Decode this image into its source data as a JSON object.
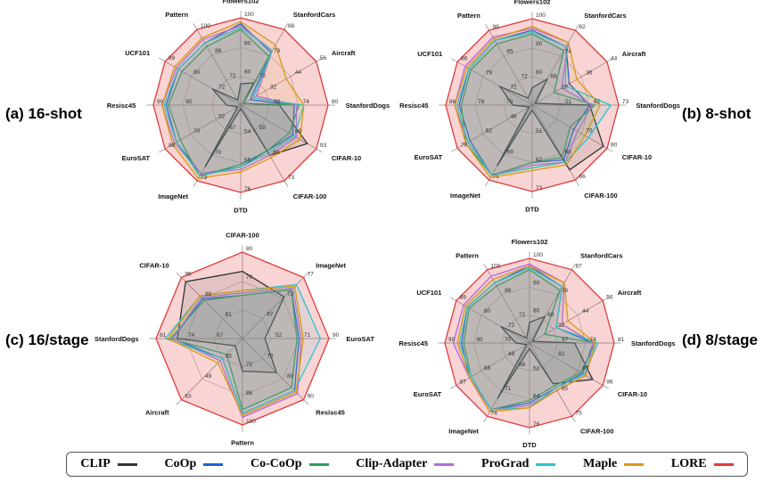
{
  "methods": [
    {
      "name": "CLIP",
      "color": "#333333"
    },
    {
      "name": "CoOp",
      "color": "#1f5fd6"
    },
    {
      "name": "Co-CoOp",
      "color": "#2e9e5b"
    },
    {
      "name": "Clip-Adapter",
      "color": "#b06be0"
    },
    {
      "name": "ProGrad",
      "color": "#2bc4cf"
    },
    {
      "name": "Maple",
      "color": "#d99a14"
    },
    {
      "name": "LORE",
      "color": "#e03c3c"
    }
  ],
  "chart_data": [
    {
      "type": "radar",
      "panel_label": "(a) 16-shot",
      "axes": [
        "Flowers102",
        "StanfordCars",
        "Aircraft",
        "StanfordDogs",
        "CIFAR-10",
        "CIFAR-100",
        "DTD",
        "ImageNet",
        "EuroSAT",
        "Resisc45",
        "UCF101",
        "Pattern"
      ],
      "axis_max": [
        100,
        88,
        56,
        80,
        93,
        73,
        76,
        73,
        88,
        90,
        89,
        100
      ],
      "ticks": [
        [
          "100",
          "90",
          "80"
        ],
        [
          "88",
          "79",
          "70"
        ],
        [
          "56",
          "44",
          "32"
        ],
        [
          "80",
          "74",
          "68"
        ],
        [
          "93",
          "83"
        ],
        [
          "73",
          "66",
          "59"
        ],
        [
          "76",
          "65",
          "54"
        ],
        [
          "73",
          "70",
          "67"
        ],
        [
          "88",
          "70",
          "52"
        ],
        [
          "90",
          "80"
        ],
        [
          "89",
          "80",
          "72"
        ],
        [
          "100",
          "86",
          "72"
        ]
      ],
      "series": [
        {
          "name": "CLIP",
          "values": [
            66,
            60,
            20,
            60,
            88,
            62,
            42,
            67,
            46,
            56,
            64,
            58
          ]
        },
        {
          "name": "CoOp",
          "values": [
            97,
            76,
            34,
            66,
            80,
            60,
            66,
            70,
            82,
            84,
            82,
            92
          ]
        },
        {
          "name": "Co-CoOp",
          "values": [
            94,
            74,
            30,
            68,
            78,
            60,
            65,
            71,
            80,
            83,
            80,
            90
          ]
        },
        {
          "name": "Clip-Adapter",
          "values": [
            96,
            77,
            36,
            67,
            82,
            62,
            67,
            70,
            83,
            86,
            83,
            94
          ]
        },
        {
          "name": "ProGrad",
          "values": [
            95,
            77,
            35,
            70,
            81,
            61,
            66,
            71,
            82,
            85,
            82,
            92
          ]
        },
        {
          "name": "Maple",
          "values": [
            98,
            80,
            46,
            70,
            84,
            63,
            68,
            72,
            84,
            86,
            84,
            95
          ]
        },
        {
          "name": "LORE",
          "values": [
            100,
            88,
            56,
            80,
            93,
            73,
            76,
            73,
            88,
            90,
            89,
            100
          ]
        }
      ]
    },
    {
      "type": "radar",
      "panel_label": "(b) 8-shot",
      "axes": [
        "Flowers102",
        "StanfordCars",
        "Aircraft",
        "StanfordDogs",
        "CIFAR-10",
        "CIFAR-100",
        "DTD",
        "ImageNet",
        "EuroSAT",
        "Resisc45",
        "UCF101",
        "Pattern"
      ],
      "axis_max": [
        100,
        82,
        44,
        73,
        90,
        66,
        73,
        71,
        78,
        86,
        86,
        98
      ],
      "ticks": [
        [
          "100",
          "90",
          "80"
        ],
        [
          "82",
          "74",
          "66"
        ],
        [
          "44",
          "36",
          "28"
        ],
        [
          "73",
          "62",
          "51"
        ],
        [
          "90",
          "70"
        ],
        [
          "66",
          "60"
        ],
        [
          "73",
          "62",
          "51"
        ],
        [
          "71",
          "69"
        ],
        [
          "78",
          "62",
          "46"
        ],
        [
          "86",
          "78",
          "70"
        ],
        [
          "86",
          "79",
          "72"
        ],
        [
          "98",
          "85",
          "72"
        ]
      ],
      "series": [
        {
          "name": "CLIP",
          "values": [
            64,
            58,
            18,
            62,
            88,
            62,
            42,
            65,
            44,
            56,
            64,
            58
          ]
        },
        {
          "name": "CoOp",
          "values": [
            94,
            74,
            34,
            62,
            72,
            58,
            62,
            69,
            72,
            80,
            80,
            92
          ]
        },
        {
          "name": "Co-CoOp",
          "values": [
            92,
            72,
            30,
            64,
            70,
            57,
            62,
            69,
            74,
            79,
            79,
            90
          ]
        },
        {
          "name": "Clip-Adapter",
          "values": [
            95,
            76,
            32,
            63,
            74,
            59,
            63,
            69,
            73,
            82,
            82,
            94
          ]
        },
        {
          "name": "ProGrad",
          "values": [
            93,
            74,
            33,
            70,
            80,
            59,
            64,
            69,
            73,
            81,
            80,
            92
          ]
        },
        {
          "name": "Maple",
          "values": [
            96,
            76,
            36,
            66,
            78,
            60,
            65,
            70,
            74,
            82,
            81,
            93
          ]
        },
        {
          "name": "LORE",
          "values": [
            100,
            82,
            44,
            73,
            90,
            66,
            73,
            71,
            78,
            86,
            86,
            98
          ]
        }
      ]
    },
    {
      "type": "radar",
      "panel_label": "(c) 16/stage",
      "axes": [
        "CIFAR-100",
        "ImageNet",
        "EuroSAT",
        "Resisc45",
        "Pattern",
        "Aircraft",
        "StanfordDogs",
        "CIFAR-10"
      ],
      "axis_max": [
        80,
        77,
        90,
        90,
        100,
        63,
        81,
        95
      ],
      "ticks": [
        [
          "80",
          "70"
        ],
        [
          "77",
          "72",
          "67"
        ],
        [
          "90",
          "71",
          "52"
        ],
        [
          "90",
          "80",
          "70"
        ],
        [
          "100",
          "86",
          "72"
        ],
        [
          "63",
          "49",
          "35"
        ],
        [
          "81",
          "74",
          "67"
        ],
        [
          "95",
          "88",
          "81"
        ]
      ],
      "series": [
        {
          "name": "CLIP",
          "values": [
            72,
            66,
            60,
            72,
            72,
            38,
            72,
            92
          ]
        },
        {
          "name": "CoOp",
          "values": [
            62,
            70,
            76,
            84,
            94,
            44,
            74,
            80
          ]
        },
        {
          "name": "Co-CoOp",
          "values": [
            62,
            70,
            75,
            82,
            92,
            42,
            75,
            79
          ]
        },
        {
          "name": "Clip-Adapter",
          "values": [
            63,
            71,
            77,
            86,
            96,
            45,
            74,
            81
          ]
        },
        {
          "name": "ProGrad",
          "values": [
            64,
            73,
            86,
            84,
            94,
            44,
            77,
            82
          ]
        },
        {
          "name": "Maple",
          "values": [
            64,
            72,
            78,
            85,
            95,
            46,
            76,
            82
          ]
        },
        {
          "name": "LORE",
          "values": [
            80,
            77,
            90,
            90,
            100,
            63,
            81,
            95
          ]
        }
      ]
    },
    {
      "type": "radar",
      "panel_label": "(d) 8/stage",
      "axes": [
        "Flowers102",
        "StanfordCars",
        "Aircraft",
        "StanfordDogs",
        "CIFAR-10",
        "CIFAR-100",
        "DTD",
        "ImageNet",
        "EuroSAT",
        "Resisc45",
        "UCF101",
        "Pattern"
      ],
      "axis_max": [
        100,
        87,
        56,
        81,
        96,
        75,
        76,
        74,
        87,
        90,
        88,
        100
      ],
      "ticks": [
        [
          "100",
          "90",
          "80"
        ],
        [
          "87",
          "78",
          "69"
        ],
        [
          "56",
          "44",
          "32"
        ],
        [
          "81",
          "74",
          "67"
        ],
        [
          "96",
          "89",
          "82"
        ],
        [
          "75",
          "65"
        ],
        [
          "76",
          "64",
          "52"
        ],
        [
          "74",
          "71",
          "68"
        ],
        [
          "87",
          "68",
          "49"
        ],
        [
          "90",
          "80",
          "70"
        ],
        [
          "88",
          "80",
          "72"
        ],
        [
          "100",
          "86",
          "72"
        ]
      ],
      "series": [
        {
          "name": "CLIP",
          "values": [
            66,
            62,
            20,
            64,
            90,
            60,
            44,
            66,
            46,
            56,
            64,
            58
          ]
        },
        {
          "name": "CoOp",
          "values": [
            96,
            78,
            40,
            72,
            84,
            62,
            66,
            71,
            80,
            82,
            82,
            92
          ]
        },
        {
          "name": "Co-CoOp",
          "values": [
            94,
            76,
            36,
            73,
            83,
            61,
            65,
            71,
            79,
            81,
            81,
            90
          ]
        },
        {
          "name": "Clip-Adapter",
          "values": [
            97,
            80,
            42,
            72,
            86,
            63,
            67,
            71,
            80,
            86,
            84,
            96
          ]
        },
        {
          "name": "ProGrad",
          "values": [
            95,
            78,
            40,
            74,
            85,
            62,
            68,
            71,
            79,
            83,
            82,
            92
          ]
        },
        {
          "name": "Maple",
          "values": [
            96,
            80,
            44,
            73,
            86,
            63,
            68,
            72,
            80,
            84,
            83,
            94
          ]
        },
        {
          "name": "LORE",
          "values": [
            100,
            87,
            56,
            81,
            96,
            75,
            76,
            74,
            87,
            90,
            88,
            100
          ]
        }
      ]
    }
  ]
}
